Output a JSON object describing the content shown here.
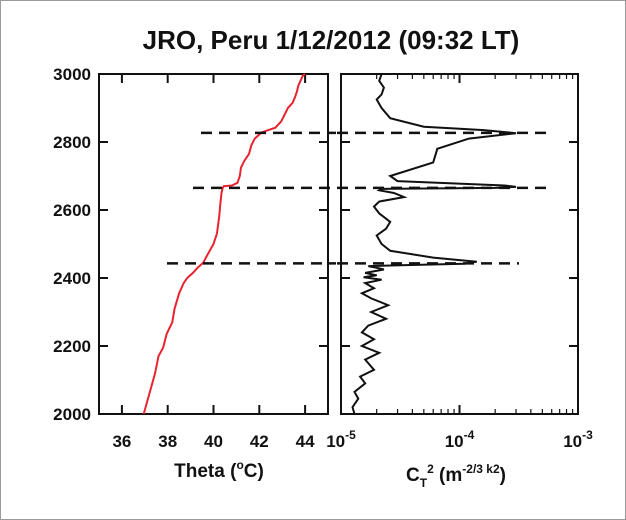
{
  "chart_data": [
    {
      "type": "line",
      "panel": "left",
      "title": "JRO, Peru 1/12/2012 (09:32 LT)",
      "xlabel": "Theta (°C)",
      "xlabel_main": "Theta (",
      "xlabel_sup": "o",
      "xlabel_end": "C)",
      "ylabel": "",
      "xlim": [
        35,
        45
      ],
      "ylim": [
        2000,
        3000
      ],
      "xticks": [
        36,
        38,
        40,
        42,
        44
      ],
      "yticks": [
        2000,
        2200,
        2400,
        2600,
        2800,
        3000
      ],
      "grid": false,
      "line_color": "#e8232f",
      "series": [
        {
          "x": [
            36.95,
            37.2,
            37.45,
            37.6,
            37.8,
            37.95,
            38.2,
            38.3,
            38.5,
            38.7,
            38.85,
            39.1,
            39.3,
            39.55,
            39.75,
            40.0,
            40.15,
            40.25,
            40.3,
            40.35,
            40.4,
            40.45,
            40.8,
            41.05,
            41.15,
            41.2,
            41.35,
            41.55,
            41.65,
            41.8,
            42.0,
            42.1,
            42.3,
            42.7,
            42.95,
            43.1,
            43.25,
            43.45,
            43.55,
            43.65,
            43.7,
            43.8,
            43.9,
            44.0
          ],
          "y": [
            2000,
            2060,
            2120,
            2170,
            2195,
            2235,
            2270,
            2310,
            2355,
            2385,
            2400,
            2415,
            2430,
            2445,
            2470,
            2500,
            2530,
            2580,
            2620,
            2650,
            2665,
            2670,
            2672,
            2680,
            2700,
            2725,
            2745,
            2765,
            2790,
            2810,
            2822,
            2828,
            2833,
            2842,
            2860,
            2880,
            2900,
            2915,
            2930,
            2950,
            2965,
            2980,
            2995,
            3000
          ]
        }
      ],
      "dashed_lines_y": [
        2827,
        2665,
        2443
      ]
    },
    {
      "type": "line",
      "panel": "right",
      "xlabel": "CT2 (m-2/3 k2)",
      "xlabel_main": "C",
      "xlabel_sub": "T",
      "xlabel_sup": "2",
      "xlabel_mid": " (m",
      "xlabel_sup2": "-2/3 k2",
      "xlabel_end": ")",
      "xscale": "log",
      "xlim": [
        1e-05,
        0.001
      ],
      "ylim": [
        2000,
        3000
      ],
      "xtick_labels": [
        {
          "base": "10",
          "exp": "-5",
          "value": 1e-05
        },
        {
          "base": "10",
          "exp": "-4",
          "value": 0.0001
        },
        {
          "base": "10",
          "exp": "-3",
          "value": 0.001
        }
      ],
      "yticks": [
        2000,
        2200,
        2400,
        2600,
        2800,
        3000
      ],
      "grid": false,
      "line_color": "#111111",
      "series": [
        {
          "x": [
            1.3e-05,
            1.25e-05,
            1.4e-05,
            1.3e-05,
            1.6e-05,
            1.45e-05,
            1.9e-05,
            1.6e-05,
            2.1e-05,
            1.5e-05,
            1.9e-05,
            1.5e-05,
            1.7e-05,
            2.4e-05,
            1.8e-05,
            2.5e-05,
            1.8e-05,
            1.5e-05,
            1.9e-05,
            1.6e-05,
            2.2e-05,
            1.55e-05,
            2e-05,
            1.6e-05,
            2.3e-05,
            2e-05,
            1.7e-05,
            3.5e-05,
            0.00011,
            0.00014,
            6e-05,
            2.6e-05,
            2.2e-05,
            2e-05,
            2.4e-05,
            2.6e-05,
            2.1e-05,
            1.9e-05,
            2.1e-05,
            3.4e-05,
            2.8e-05,
            2.1e-05,
            2.2e-05,
            0.0002,
            0.0003,
            0.00024,
            3e-05,
            2.6e-05,
            6e-05,
            6.5e-05,
            0.00012,
            0.0003,
            0.00016,
            5e-05,
            2.6e-05,
            2.2e-05,
            2e-05,
            2.2e-05,
            2.3e-05,
            2.1e-05,
            2.2e-05
          ],
          "y": [
            2000,
            2020,
            2045,
            2065,
            2090,
            2110,
            2130,
            2160,
            2180,
            2200,
            2220,
            2240,
            2260,
            2280,
            2300,
            2320,
            2340,
            2355,
            2370,
            2385,
            2395,
            2402,
            2408,
            2415,
            2425,
            2430,
            2435,
            2438,
            2442,
            2448,
            2460,
            2480,
            2500,
            2525,
            2545,
            2565,
            2590,
            2610,
            2625,
            2638,
            2650,
            2658,
            2662,
            2665,
            2668,
            2672,
            2685,
            2700,
            2740,
            2780,
            2810,
            2826,
            2835,
            2845,
            2870,
            2900,
            2925,
            2940,
            2960,
            2980,
            3000
          ]
        }
      ],
      "dashed_lines_y": [
        2827,
        2665,
        2443
      ]
    }
  ]
}
